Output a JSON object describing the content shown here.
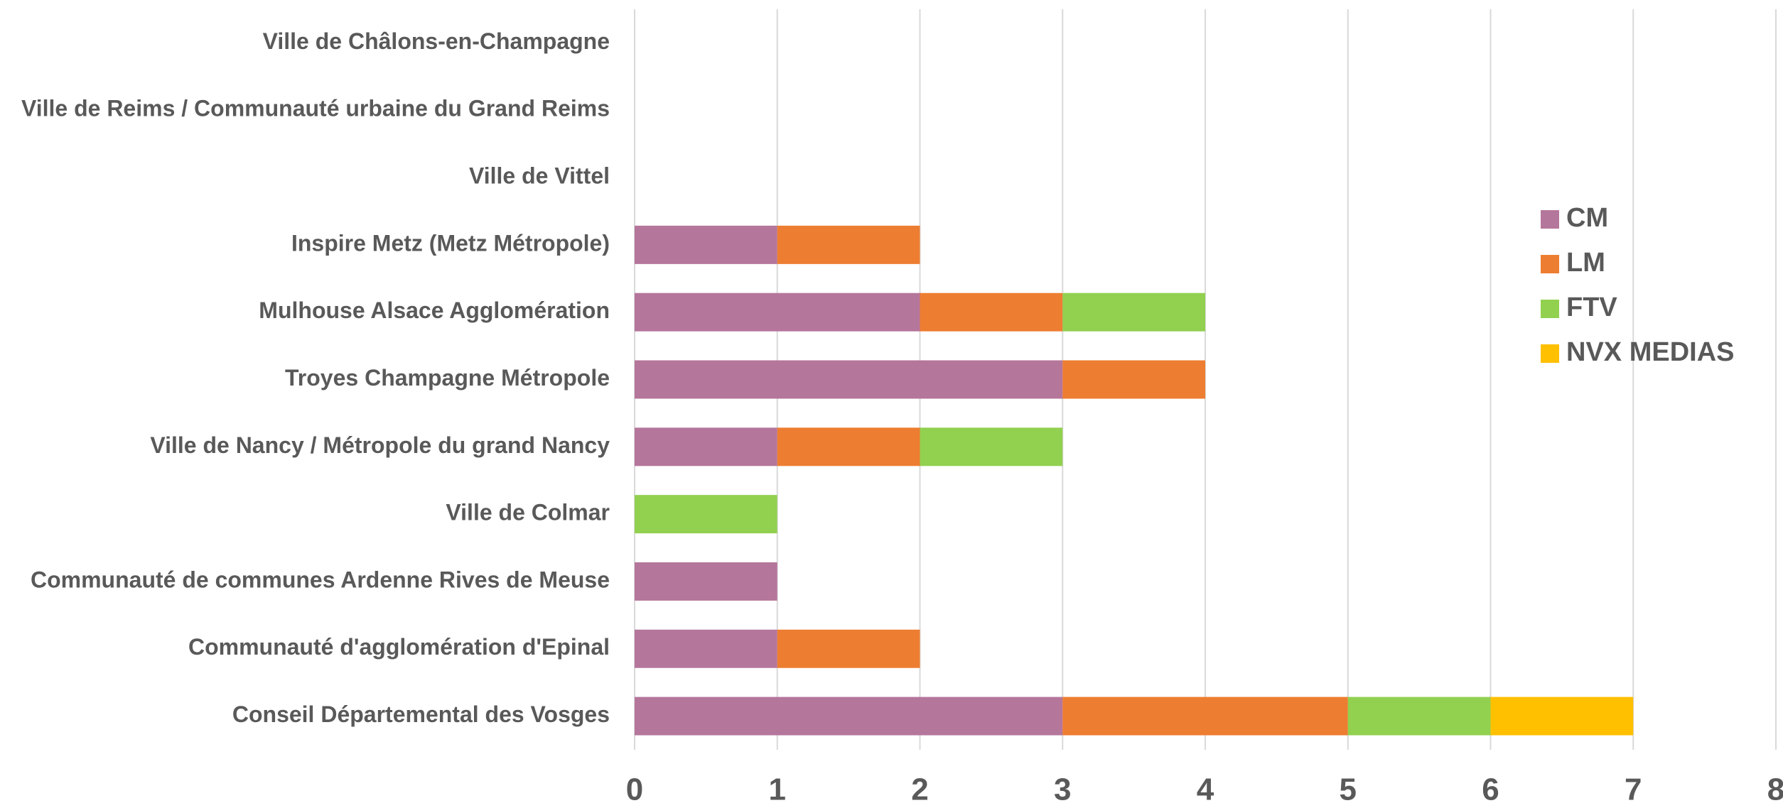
{
  "chart_data": {
    "type": "stacked_bar_horizontal",
    "categories": [
      "Ville de Châlons-en-Champagne",
      "Ville de Reims / Communauté urbaine du Grand Reims",
      "Ville de Vittel",
      "Inspire Metz (Metz Métropole)",
      "Mulhouse Alsace Agglomération",
      "Troyes Champagne Métropole",
      "Ville de Nancy / Métropole du grand Nancy",
      "Ville de Colmar",
      "Communauté de communes Ardenne Rives de Meuse",
      "Communauté d'agglomération d'Epinal",
      "Conseil Départemental des Vosges"
    ],
    "series": [
      {
        "name": "CM",
        "color": "#b5769b",
        "values": [
          0,
          0,
          0,
          1,
          2,
          3,
          1,
          0,
          1,
          1,
          3
        ]
      },
      {
        "name": "LM",
        "color": "#ed7d31",
        "values": [
          0,
          0,
          0,
          1,
          1,
          1,
          1,
          0,
          0,
          1,
          2
        ]
      },
      {
        "name": "FTV",
        "color": "#92d050",
        "values": [
          0,
          0,
          0,
          0,
          1,
          0,
          1,
          1,
          0,
          0,
          1
        ]
      },
      {
        "name": "NVX MEDIAS",
        "color": "#ffc000",
        "values": [
          0,
          0,
          0,
          0,
          0,
          0,
          0,
          0,
          0,
          0,
          1
        ]
      }
    ],
    "xlim": [
      0,
      8
    ],
    "xticks": [
      0,
      1,
      2,
      3,
      4,
      5,
      6,
      7,
      8
    ],
    "grid": true,
    "legend": "right"
  }
}
